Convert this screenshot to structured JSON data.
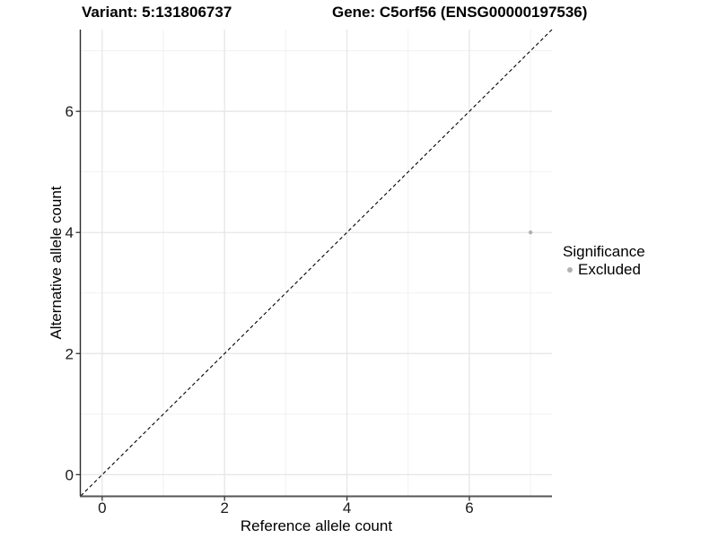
{
  "chart_data": {
    "type": "scatter",
    "title_left": "Variant: 5:131806737",
    "title_right": "Gene: C5orf56 (ENSG00000197536)",
    "xlabel": "Reference allele count",
    "ylabel": "Alternative allele count",
    "xlim": [
      -0.35,
      7.35
    ],
    "ylim": [
      -0.35,
      7.35
    ],
    "x_ticks": [
      0,
      2,
      4,
      6
    ],
    "y_ticks": [
      0,
      2,
      4,
      6
    ],
    "x_minor_ticks": [
      1,
      3,
      5,
      7
    ],
    "y_minor_ticks": [
      1,
      3,
      5,
      7
    ],
    "grid": "on",
    "identity_line": {
      "style": "dashed",
      "color": "#000000",
      "from": -0.35,
      "to": 7.35
    },
    "series": [
      {
        "name": "Excluded",
        "color": "#b2b2b2",
        "points": [
          {
            "x": 7,
            "y": 4
          }
        ]
      }
    ],
    "legend": {
      "title": "Significance",
      "position": "right",
      "items": [
        {
          "label": "Excluded",
          "color": "#b2b2b2"
        }
      ]
    },
    "colors": {
      "background": "#ffffff",
      "grid_major": "#e6e6e6",
      "grid_minor": "#f1f1f1",
      "axis_line_x": "#555555",
      "axis_line_y": "#2a2a2a",
      "tick_mark": "#333333",
      "tick_label": "#1a1a1a",
      "point": "#b2b2b2"
    }
  }
}
